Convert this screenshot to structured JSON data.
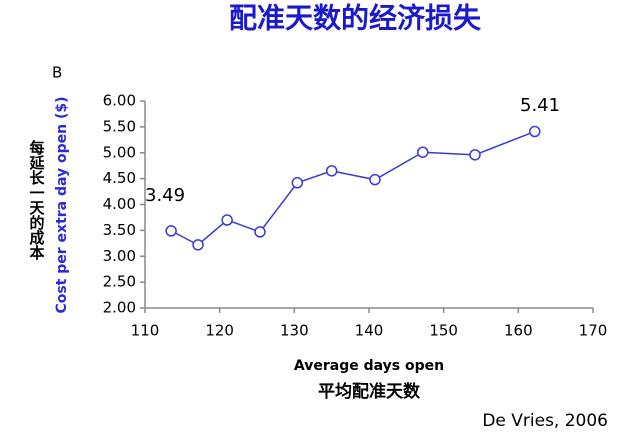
{
  "chart_data": {
    "type": "line",
    "title": "配准天数的经济损失",
    "panel_label": "B",
    "y_label": "Cost per extra day open ($)",
    "y_label_cn": "每延长一天的成本",
    "x_label": "Average days open",
    "x_label_cn": "平均配准天数",
    "source": "De Vries, 2006",
    "annotations": [
      "3.49",
      "5.41"
    ],
    "x": [
      113.5,
      117.1,
      121.0,
      125.4,
      130.4,
      135.0,
      140.8,
      147.2,
      154.2,
      162.2
    ],
    "series": [
      {
        "color": "#3a3ad6",
        "values": [
          3.49,
          3.22,
          3.7,
          3.47,
          4.42,
          4.65,
          4.48,
          5.01,
          4.96,
          5.41
        ]
      }
    ],
    "xlim": [
      110,
      170
    ],
    "xticks": [
      110,
      120,
      130,
      140,
      150,
      160,
      170
    ],
    "ylim": [
      2,
      6
    ],
    "yticks": [
      {
        "value": 2,
        "label": "2.00"
      },
      {
        "value": 2.5,
        "label": "2.50"
      },
      {
        "value": 3,
        "label": "3.00"
      },
      {
        "value": 3.5,
        "label": "3.50"
      },
      {
        "value": 4,
        "label": "4.00"
      },
      {
        "value": 4.5,
        "label": "4.50"
      },
      {
        "value": 5,
        "label": "5.00"
      },
      {
        "value": 5.5,
        "label": "5.50"
      },
      {
        "value": 6,
        "label": "6.00"
      }
    ]
  }
}
